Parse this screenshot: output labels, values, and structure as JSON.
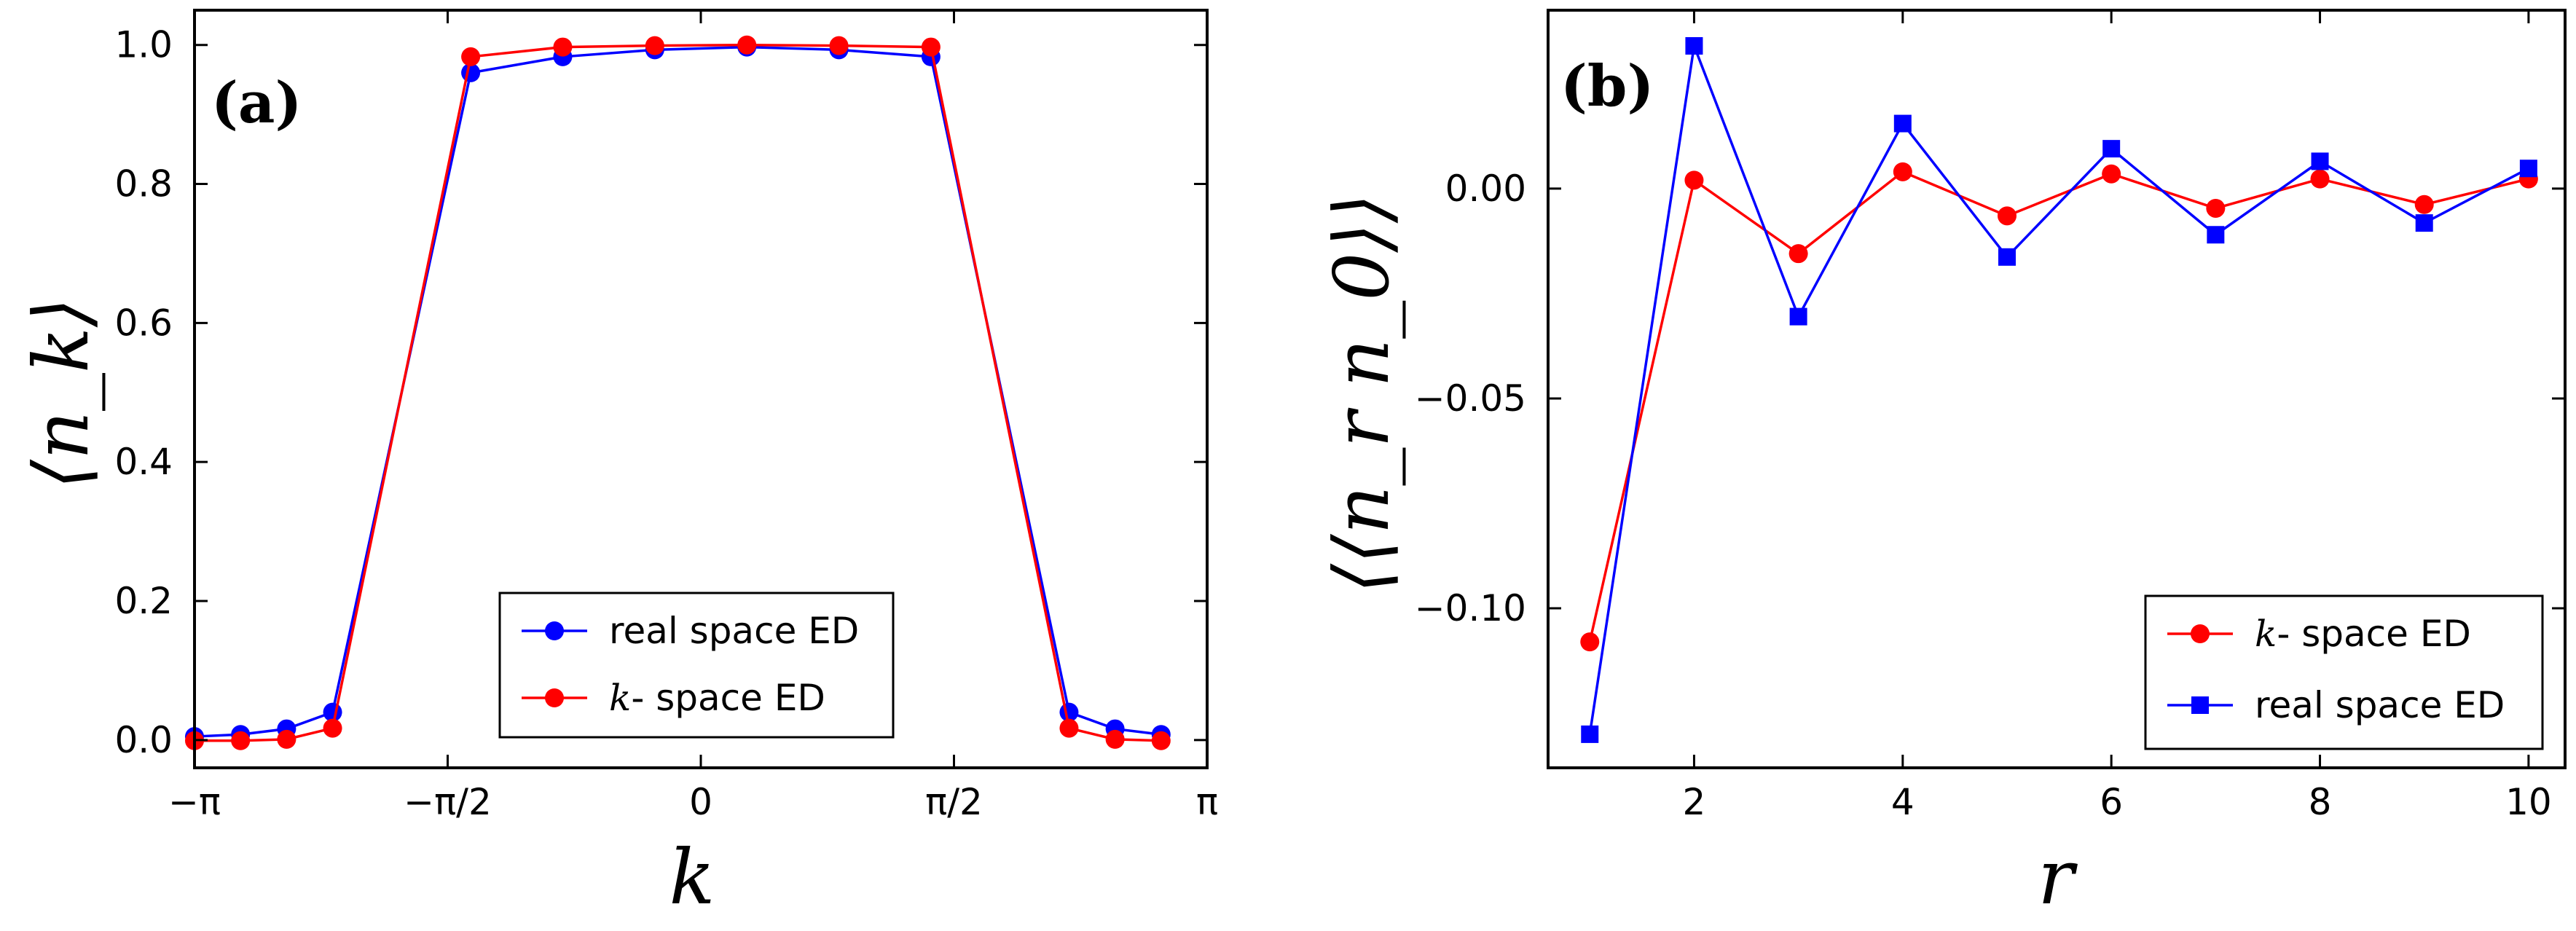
{
  "chart_data": [
    {
      "panel": "(a)",
      "type": "line",
      "xlabel": "k",
      "ylabel": "⟨n_k⟩",
      "xlim": [
        -3.1416,
        3.1416
      ],
      "ylim": [
        -0.04,
        1.05
      ],
      "x_ticks": [
        {
          "value": -3.1416,
          "label": "−π"
        },
        {
          "value": -1.5708,
          "label": "−π/2"
        },
        {
          "value": 0,
          "label": "0"
        },
        {
          "value": 1.5708,
          "label": "π/2"
        },
        {
          "value": 3.1416,
          "label": "π"
        }
      ],
      "y_ticks": [
        {
          "value": 0.0,
          "label": "0.0"
        },
        {
          "value": 0.2,
          "label": "0.2"
        },
        {
          "value": 0.4,
          "label": "0.4"
        },
        {
          "value": 0.6,
          "label": "0.6"
        },
        {
          "value": 0.8,
          "label": "0.8"
        },
        {
          "value": 1.0,
          "label": "1.0"
        }
      ],
      "legend": {
        "placement": "lower-right"
      },
      "series": [
        {
          "name": "real space ED",
          "name_italic_prefix": "",
          "name_text": "real space ED",
          "color": "#0000ff",
          "marker": "circle",
          "x": [
            -3.1416,
            -2.856,
            -2.5704,
            -2.2848,
            -1.428,
            -0.8568,
            -0.2856,
            0.2856,
            0.8568,
            1.428,
            2.2848,
            2.5704,
            2.856
          ],
          "values": [
            0.005,
            0.008,
            0.016,
            0.04,
            0.96,
            0.983,
            0.993,
            0.997,
            0.993,
            0.983,
            0.04,
            0.016,
            0.008
          ]
        },
        {
          "name": "k- space ED",
          "name_italic_prefix": "k",
          "name_text": "- space ED",
          "color": "#ff0000",
          "marker": "circle",
          "x": [
            -3.1416,
            -2.856,
            -2.5704,
            -2.2848,
            -1.428,
            -0.8568,
            -0.2856,
            0.2856,
            0.8568,
            1.428,
            2.2848,
            2.5704,
            2.856
          ],
          "values": [
            -0.001,
            -0.001,
            0.001,
            0.017,
            0.983,
            0.997,
            0.999,
            1.0,
            0.999,
            0.997,
            0.017,
            0.001,
            -0.001
          ]
        }
      ]
    },
    {
      "panel": "(b)",
      "type": "line",
      "xlabel": "r",
      "ylabel": "⟨⟨n_r n_0⟩⟩",
      "xlim": [
        0.6,
        10.35
      ],
      "ylim": [
        -0.138,
        0.0425
      ],
      "x_ticks": [
        {
          "value": 2,
          "label": "2"
        },
        {
          "value": 4,
          "label": "4"
        },
        {
          "value": 6,
          "label": "6"
        },
        {
          "value": 8,
          "label": "8"
        },
        {
          "value": 10,
          "label": "10"
        }
      ],
      "y_ticks": [
        {
          "value": 0.0,
          "label": "0.00"
        },
        {
          "value": -0.05,
          "label": "−0.05"
        },
        {
          "value": -0.1,
          "label": "−0.10"
        }
      ],
      "legend": {
        "placement": "lower-right"
      },
      "series": [
        {
          "name": "k- space ED",
          "name_italic_prefix": "k",
          "name_text": "- space ED",
          "color": "#ff0000",
          "marker": "circle",
          "x": [
            1,
            2,
            3,
            4,
            5,
            6,
            7,
            8,
            9,
            10
          ],
          "values": [
            -0.108,
            0.002,
            -0.0155,
            0.004,
            -0.0065,
            0.0035,
            -0.0047,
            0.0023,
            -0.0038,
            0.0023
          ]
        },
        {
          "name": "real space ED",
          "name_italic_prefix": "",
          "name_text": "real space ED",
          "color": "#0000ff",
          "marker": "square",
          "x": [
            1,
            2,
            3,
            4,
            5,
            6,
            7,
            8,
            9,
            10
          ],
          "values": [
            -0.13,
            0.034,
            -0.0305,
            0.0155,
            -0.0163,
            0.0095,
            -0.011,
            0.0065,
            -0.0082,
            0.0048
          ]
        }
      ]
    }
  ]
}
